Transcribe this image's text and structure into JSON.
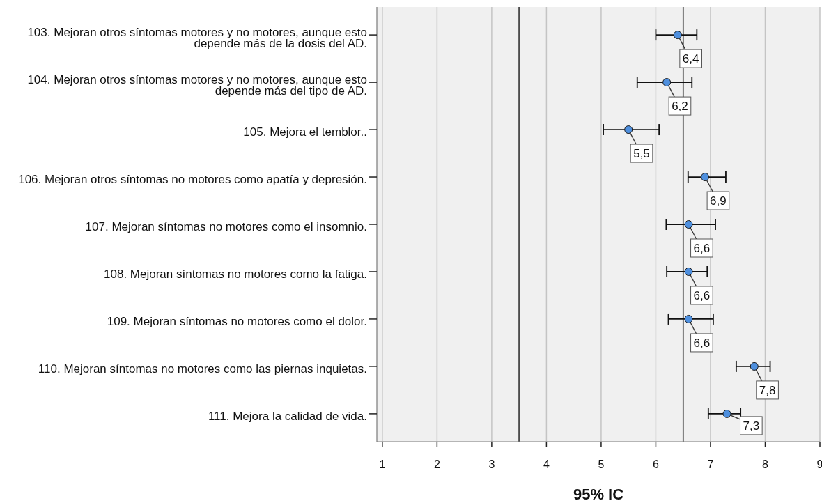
{
  "chart_data": {
    "type": "scatter",
    "orientation": "horizontal",
    "xlabel": "95% IC",
    "categories": [
      "103. Mejoran otros síntomas motores y no motores, aunque esto depende más de la dosis del AD.",
      "104. Mejoran otros síntomas motores y no motores, aunque esto depende más del tipo de AD.",
      "105. Mejora el temblor..",
      "106. Mejoran otros síntomas no motores como apatía y depresión.",
      "107. Mejoran síntomas no motores como el insomnio.",
      "108. Mejoran síntomas no motores como la fatiga.",
      "109. Mejoran síntomas no motores como el dolor.",
      "110. Mejoran síntomas no motores como las piernas inquietas.",
      "111. Mejora la calidad de vida."
    ],
    "values": [
      6.4,
      6.2,
      5.5,
      6.9,
      6.6,
      6.6,
      6.6,
      7.8,
      7.3
    ],
    "errors": [
      [
        6.0,
        6.75
      ],
      [
        5.66,
        6.66
      ],
      [
        5.04,
        6.06
      ],
      [
        6.59,
        7.28
      ],
      [
        6.19,
        7.09
      ],
      [
        6.2,
        6.94
      ],
      [
        6.23,
        7.05
      ],
      [
        7.47,
        8.09
      ],
      [
        6.96,
        7.55
      ]
    ],
    "value_labels": [
      "6,4",
      "6,2",
      "5,5",
      "6,9",
      "6,6",
      "6,6",
      "6,6",
      "7,8",
      "7,3"
    ],
    "color": "#4e8fde",
    "marker": "circle",
    "xlim": [
      0.9,
      9
    ],
    "xticks": [
      1,
      2,
      3,
      4,
      5,
      6,
      7,
      8,
      9
    ],
    "grid": "x",
    "ref_lines": [
      {
        "axis": "x",
        "value": 3.5,
        "color": "#4d4d4d"
      },
      {
        "axis": "x",
        "value": 6.5,
        "color": "#000000"
      }
    ]
  }
}
